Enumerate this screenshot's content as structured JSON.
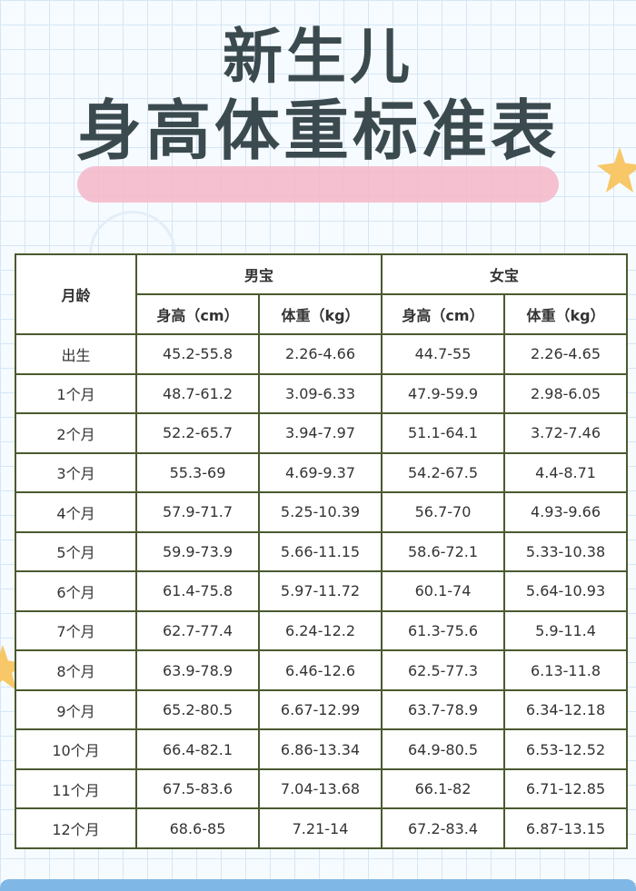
{
  "title": {
    "line1": "新生儿",
    "line2": "身高体重标准表"
  },
  "colors": {
    "title": "#3b4a4f",
    "highlight": "#f4b6c8",
    "table_border": "#4a5a2f",
    "grid": "#d6e6f5",
    "star": "#f7c768"
  },
  "table": {
    "age_header": "月龄",
    "boy_header": "男宝",
    "girl_header": "女宝",
    "sub_headers": [
      "身高（cm）",
      "体重（kg）",
      "身高（cm）",
      "体重（kg）"
    ],
    "rows": [
      {
        "age": "出生",
        "boy_height": "45.2-55.8",
        "boy_weight": "2.26-4.66",
        "girl_height": "44.7-55",
        "girl_weight": "2.26-4.65"
      },
      {
        "age": "1个月",
        "boy_height": "48.7-61.2",
        "boy_weight": "3.09-6.33",
        "girl_height": "47.9-59.9",
        "girl_weight": "2.98-6.05"
      },
      {
        "age": "2个月",
        "boy_height": "52.2-65.7",
        "boy_weight": "3.94-7.97",
        "girl_height": "51.1-64.1",
        "girl_weight": "3.72-7.46"
      },
      {
        "age": "3个月",
        "boy_height": "55.3-69",
        "boy_weight": "4.69-9.37",
        "girl_height": "54.2-67.5",
        "girl_weight": "4.4-8.71"
      },
      {
        "age": "4个月",
        "boy_height": "57.9-71.7",
        "boy_weight": "5.25-10.39",
        "girl_height": "56.7-70",
        "girl_weight": "4.93-9.66"
      },
      {
        "age": "5个月",
        "boy_height": "59.9-73.9",
        "boy_weight": "5.66-11.15",
        "girl_height": "58.6-72.1",
        "girl_weight": "5.33-10.38"
      },
      {
        "age": "6个月",
        "boy_height": "61.4-75.8",
        "boy_weight": "5.97-11.72",
        "girl_height": "60.1-74",
        "girl_weight": "5.64-10.93"
      },
      {
        "age": "7个月",
        "boy_height": "62.7-77.4",
        "boy_weight": "6.24-12.2",
        "girl_height": "61.3-75.6",
        "girl_weight": "5.9-11.4"
      },
      {
        "age": "8个月",
        "boy_height": "63.9-78.9",
        "boy_weight": "6.46-12.6",
        "girl_height": "62.5-77.3",
        "girl_weight": "6.13-11.8"
      },
      {
        "age": "9个月",
        "boy_height": "65.2-80.5",
        "boy_weight": "6.67-12.99",
        "girl_height": "63.7-78.9",
        "girl_weight": "6.34-12.18"
      },
      {
        "age": "10个月",
        "boy_height": "66.4-82.1",
        "boy_weight": "6.86-13.34",
        "girl_height": "64.9-80.5",
        "girl_weight": "6.53-12.52"
      },
      {
        "age": "11个月",
        "boy_height": "67.5-83.6",
        "boy_weight": "7.04-13.68",
        "girl_height": "66.1-82",
        "girl_weight": "6.71-12.85"
      },
      {
        "age": "12个月",
        "boy_height": "68.6-85",
        "boy_weight": "7.21-14",
        "girl_height": "67.2-83.4",
        "girl_weight": "6.87-13.15"
      }
    ]
  }
}
